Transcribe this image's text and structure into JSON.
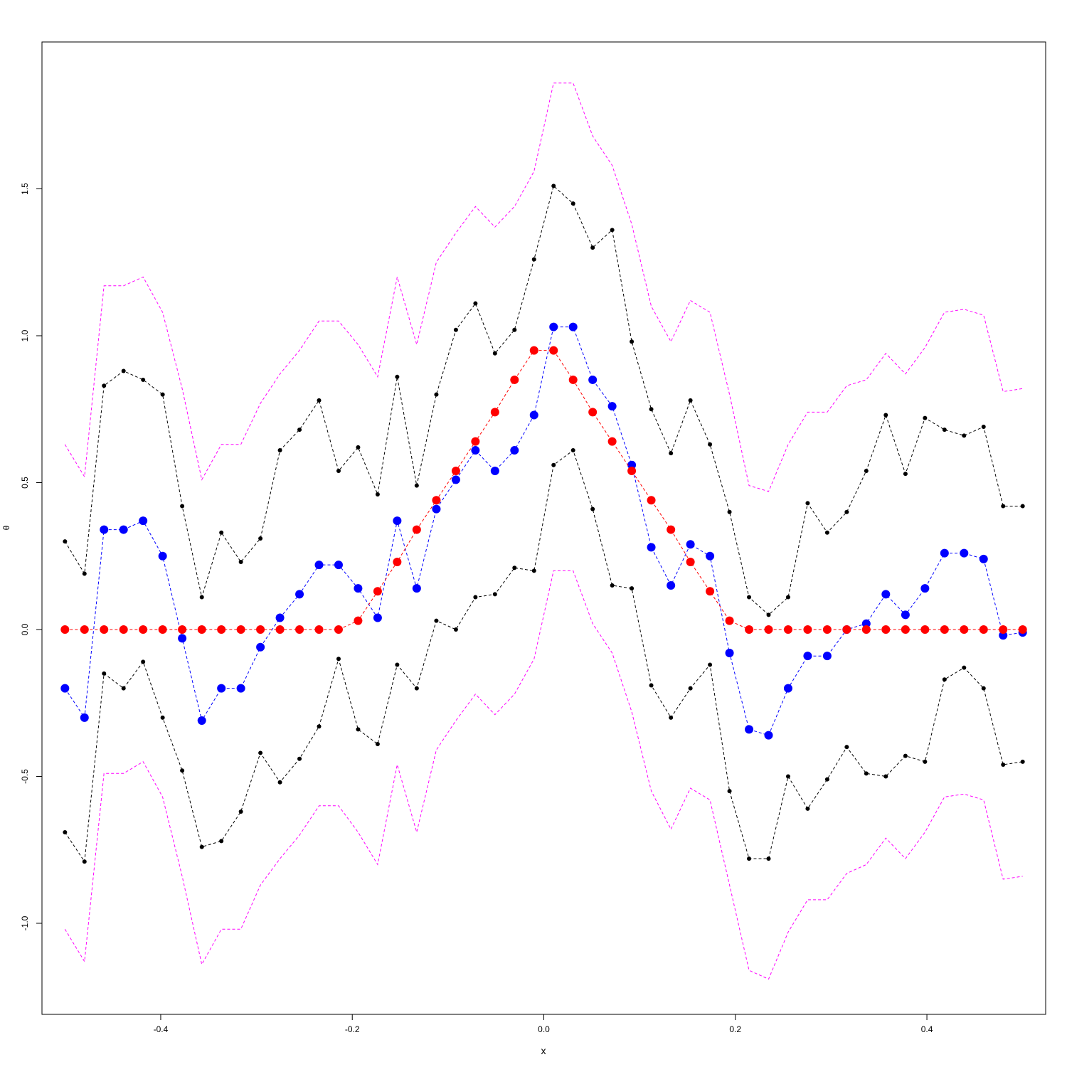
{
  "chart_data": {
    "type": "line",
    "title": "",
    "xlabel": "x",
    "ylabel": "θ",
    "xlim": [
      -0.524,
      0.524
    ],
    "ylim": [
      -1.31,
      2.0
    ],
    "xticks": [
      -0.4,
      -0.2,
      0.0,
      0.2,
      0.4
    ],
    "xtick_labels": [
      "-0.4",
      "-0.2",
      "0.0",
      "0.2",
      "0.4"
    ],
    "yticks": [
      -1.0,
      -0.5,
      0.0,
      0.5,
      1.0,
      1.5
    ],
    "ytick_labels": [
      "-1.0",
      "-0.5",
      "0.0",
      "0.5",
      "1.0",
      "1.5"
    ],
    "grid": false,
    "legend": "none",
    "x": [
      -0.5,
      -0.4796,
      -0.4592,
      -0.4388,
      -0.4184,
      -0.398,
      -0.3776,
      -0.3571,
      -0.3367,
      -0.3163,
      -0.2959,
      -0.2755,
      -0.2551,
      -0.2347,
      -0.2143,
      -0.1939,
      -0.1735,
      -0.1531,
      -0.1327,
      -0.1122,
      -0.0918,
      -0.0714,
      -0.051,
      -0.0306,
      -0.0102,
      0.0102,
      0.0306,
      0.051,
      0.0714,
      0.0918,
      0.1122,
      0.1327,
      0.1531,
      0.1735,
      0.1939,
      0.2143,
      0.2347,
      0.2551,
      0.2755,
      0.2959,
      0.3163,
      0.3367,
      0.3571,
      0.3776,
      0.398,
      0.4184,
      0.4388,
      0.4592,
      0.4796,
      0.5
    ],
    "series": [
      {
        "color": "#ff00ff",
        "line": "dashed",
        "marker": "none",
        "marker_size": 0,
        "values": [
          0.63,
          0.52,
          1.17,
          1.17,
          1.2,
          1.08,
          0.82,
          0.51,
          0.63,
          0.63,
          0.77,
          0.87,
          0.95,
          1.05,
          1.05,
          0.97,
          0.86,
          1.2,
          0.97,
          1.25,
          1.35,
          1.44,
          1.37,
          1.44,
          1.56,
          1.86,
          1.86,
          1.68,
          1.58,
          1.38,
          1.1,
          0.98,
          1.12,
          1.08,
          0.8,
          0.49,
          0.47,
          0.63,
          0.74,
          0.74,
          0.83,
          0.85,
          0.94,
          0.87,
          0.96,
          1.08,
          1.09,
          1.07,
          0.81,
          0.82
        ]
      },
      {
        "color": "#000000",
        "line": "dashed",
        "marker": "dot",
        "marker_size": 3,
        "values": [
          0.3,
          0.19,
          0.83,
          0.88,
          0.85,
          0.8,
          0.42,
          0.11,
          0.33,
          0.23,
          0.31,
          0.61,
          0.68,
          0.78,
          0.54,
          0.62,
          0.46,
          0.86,
          0.49,
          0.8,
          1.02,
          1.11,
          0.94,
          1.02,
          1.26,
          1.51,
          1.45,
          1.3,
          1.36,
          0.98,
          0.75,
          0.6,
          0.78,
          0.63,
          0.4,
          0.11,
          0.05,
          0.11,
          0.43,
          0.33,
          0.4,
          0.54,
          0.73,
          0.53,
          0.72,
          0.68,
          0.66,
          0.69,
          0.42,
          0.42
        ]
      },
      {
        "color": "#000000",
        "line": "dashed",
        "marker": "dot",
        "marker_size": 3,
        "values": [
          -0.69,
          -0.79,
          -0.15,
          -0.2,
          -0.11,
          -0.3,
          -0.48,
          -0.74,
          -0.72,
          -0.62,
          -0.42,
          -0.52,
          -0.44,
          -0.33,
          -0.1,
          -0.34,
          -0.39,
          -0.12,
          -0.2,
          0.03,
          0.0,
          0.11,
          0.12,
          0.21,
          0.2,
          0.56,
          0.61,
          0.41,
          0.15,
          0.14,
          -0.19,
          -0.3,
          -0.2,
          -0.12,
          -0.55,
          -0.78,
          -0.78,
          -0.5,
          -0.61,
          -0.51,
          -0.4,
          -0.49,
          -0.5,
          -0.43,
          -0.45,
          -0.17,
          -0.13,
          -0.2,
          -0.46,
          -0.45
        ]
      },
      {
        "color": "#ff00ff",
        "line": "dashed",
        "marker": "none",
        "marker_size": 0,
        "values": [
          -1.02,
          -1.13,
          -0.49,
          -0.49,
          -0.45,
          -0.57,
          -0.84,
          -1.14,
          -1.02,
          -1.02,
          -0.87,
          -0.78,
          -0.7,
          -0.6,
          -0.6,
          -0.69,
          -0.8,
          -0.46,
          -0.69,
          -0.41,
          -0.31,
          -0.22,
          -0.29,
          -0.22,
          -0.1,
          0.2,
          0.2,
          0.02,
          -0.08,
          -0.28,
          -0.55,
          -0.68,
          -0.54,
          -0.58,
          -0.87,
          -1.16,
          -1.19,
          -1.03,
          -0.92,
          -0.92,
          -0.83,
          -0.8,
          -0.71,
          -0.78,
          -0.69,
          -0.57,
          -0.56,
          -0.58,
          -0.85,
          -0.84
        ]
      },
      {
        "color": "#0000ff",
        "line": "dashed",
        "marker": "circle",
        "marker_size": 6,
        "values": [
          -0.2,
          -0.3,
          0.34,
          0.34,
          0.37,
          0.25,
          -0.03,
          -0.31,
          -0.2,
          -0.2,
          -0.06,
          0.04,
          0.12,
          0.22,
          0.22,
          0.14,
          0.04,
          0.37,
          0.14,
          0.41,
          0.51,
          0.61,
          0.54,
          0.61,
          0.73,
          1.03,
          1.03,
          0.85,
          0.76,
          0.56,
          0.28,
          0.15,
          0.29,
          0.25,
          -0.08,
          -0.34,
          -0.36,
          -0.2,
          -0.09,
          -0.09,
          0.0,
          0.02,
          0.12,
          0.05,
          0.14,
          0.26,
          0.26,
          0.24,
          -0.02,
          -0.01
        ]
      },
      {
        "color": "#ff0000",
        "line": "dashed",
        "marker": "circle",
        "marker_size": 6,
        "values": [
          0,
          0,
          0,
          0,
          0,
          0,
          0,
          0,
          0,
          0,
          0,
          0,
          0,
          0,
          0,
          0.03,
          0.13,
          0.23,
          0.34,
          0.44,
          0.54,
          0.64,
          0.74,
          0.85,
          0.95,
          0.95,
          0.85,
          0.74,
          0.64,
          0.54,
          0.44,
          0.34,
          0.23,
          0.13,
          0.03,
          0,
          0,
          0,
          0,
          0,
          0,
          0,
          0,
          0,
          0,
          0,
          0,
          0,
          0,
          0
        ]
      }
    ]
  }
}
